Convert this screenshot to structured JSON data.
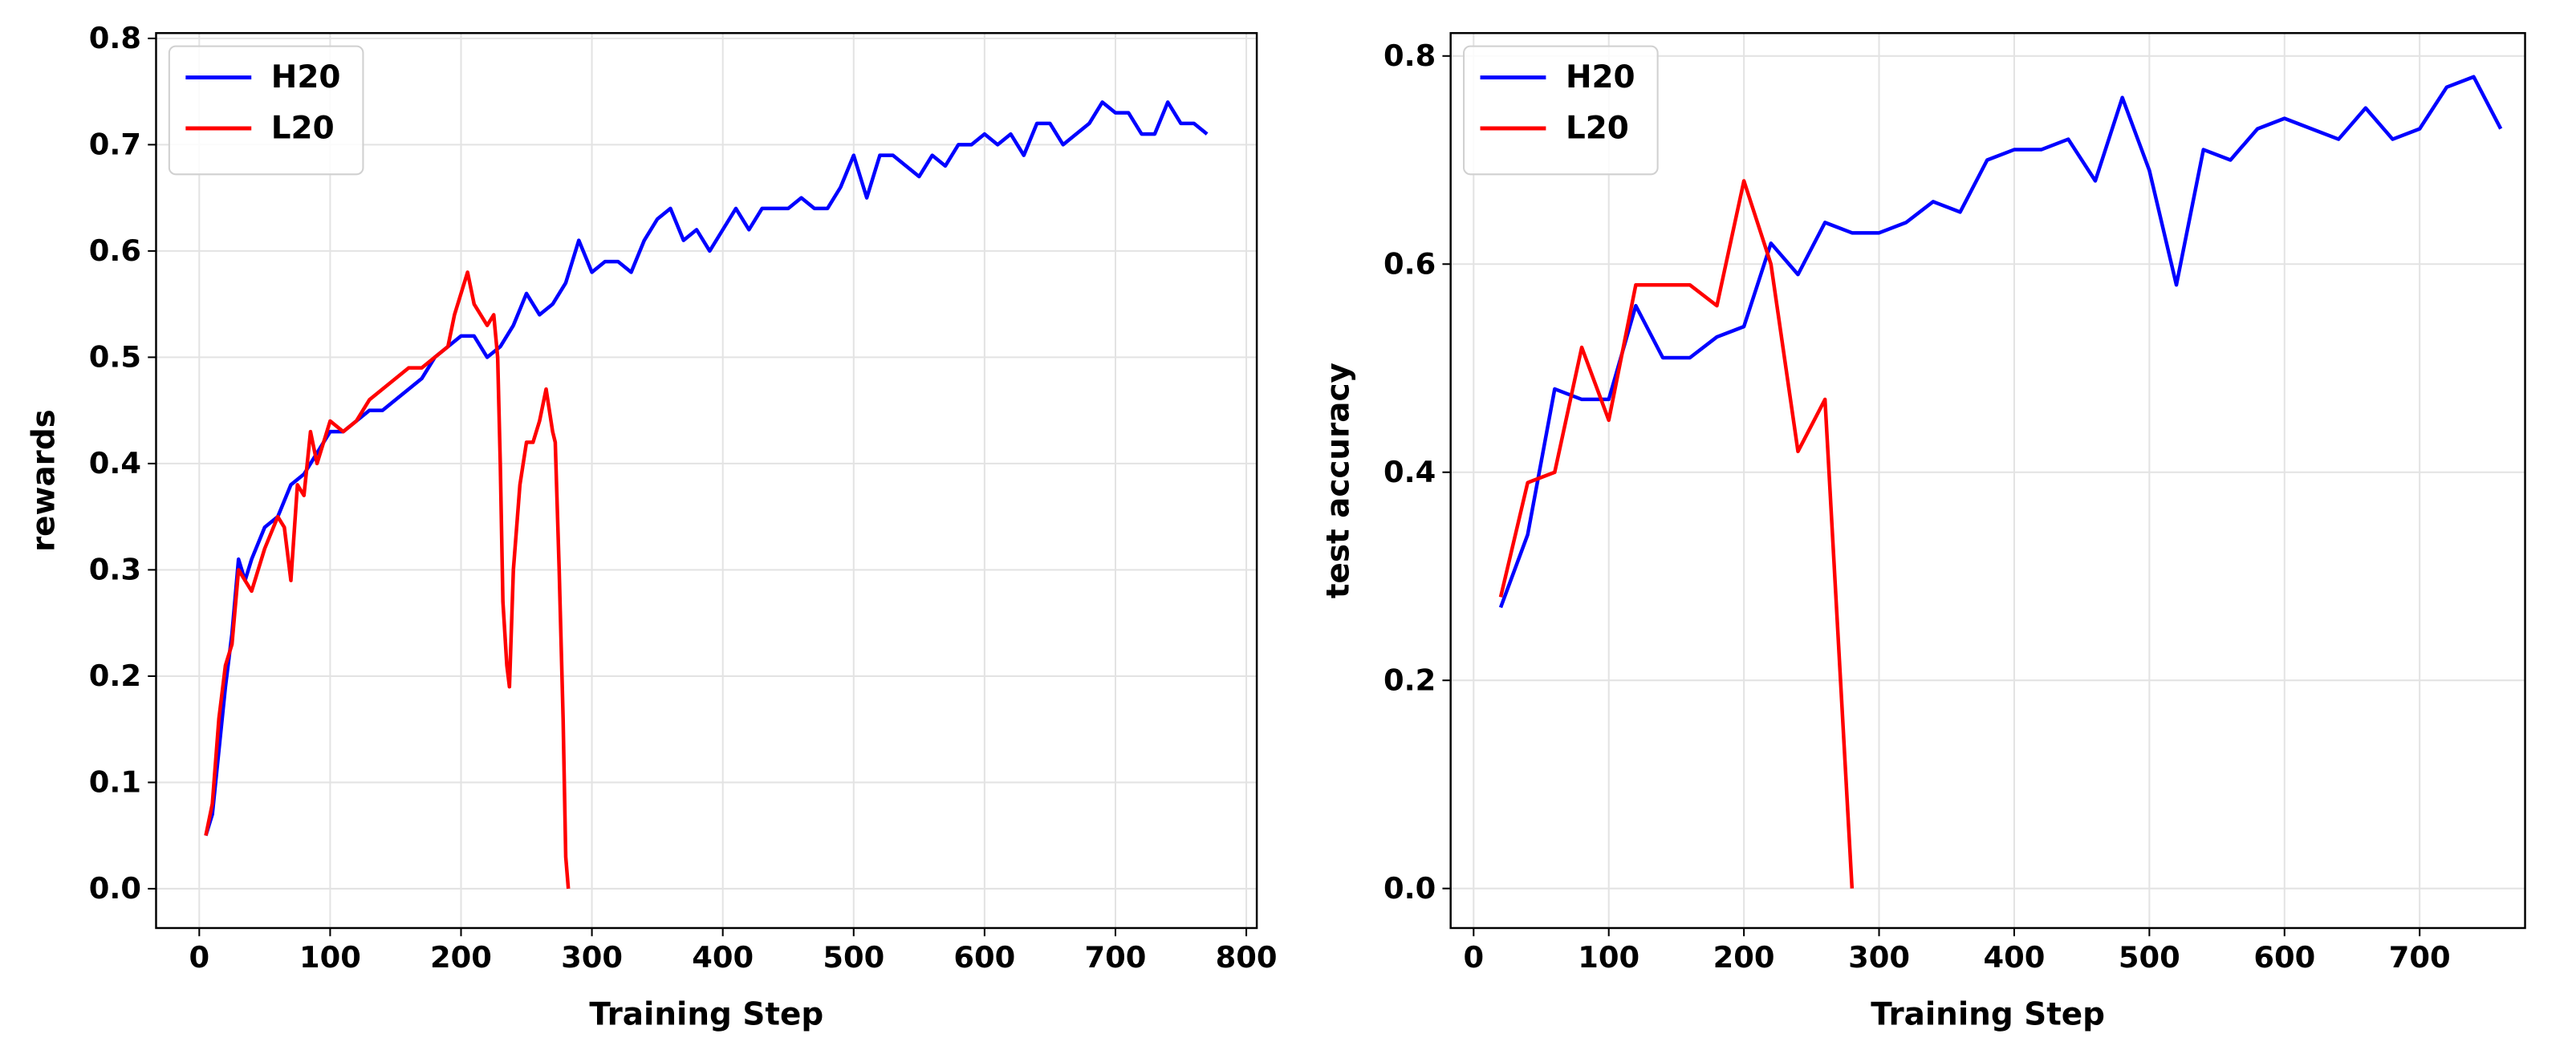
{
  "chart_data": [
    {
      "type": "line",
      "xlabel": "Training Step",
      "ylabel": "rewards",
      "grid": true,
      "legend": "upper left",
      "xlim": [
        -33,
        808
      ],
      "ylim": [
        -0.037,
        0.805
      ],
      "xticks": [
        0,
        100,
        200,
        300,
        400,
        500,
        600,
        700,
        800
      ],
      "yticks": [
        {
          "value": 0,
          "label": "0.0"
        },
        0.1,
        0.2,
        0.3,
        0.4,
        0.5,
        0.6,
        0.7,
        0.8
      ],
      "series": [
        {
          "name": "H20",
          "color": "#0000ff",
          "x": [
            5,
            10,
            15,
            20,
            25,
            30,
            35,
            40,
            50,
            60,
            70,
            80,
            90,
            100,
            110,
            120,
            130,
            140,
            150,
            160,
            170,
            180,
            190,
            200,
            210,
            220,
            230,
            240,
            250,
            260,
            270,
            280,
            290,
            300,
            310,
            320,
            330,
            340,
            350,
            360,
            370,
            380,
            390,
            400,
            410,
            420,
            430,
            440,
            450,
            460,
            470,
            480,
            490,
            500,
            510,
            520,
            530,
            540,
            550,
            560,
            570,
            580,
            590,
            600,
            610,
            620,
            630,
            640,
            650,
            660,
            670,
            680,
            690,
            700,
            710,
            720,
            730,
            740,
            750,
            760,
            770
          ],
          "values": [
            0.05,
            0.07,
            0.13,
            0.19,
            0.24,
            0.31,
            0.29,
            0.31,
            0.34,
            0.35,
            0.38,
            0.39,
            0.41,
            0.43,
            0.43,
            0.44,
            0.45,
            0.45,
            0.46,
            0.47,
            0.48,
            0.5,
            0.51,
            0.52,
            0.52,
            0.5,
            0.51,
            0.53,
            0.56,
            0.54,
            0.55,
            0.57,
            0.61,
            0.58,
            0.59,
            0.59,
            0.58,
            0.61,
            0.63,
            0.64,
            0.61,
            0.62,
            0.6,
            0.62,
            0.64,
            0.62,
            0.64,
            0.64,
            0.64,
            0.65,
            0.64,
            0.64,
            0.66,
            0.69,
            0.65,
            0.69,
            0.69,
            0.68,
            0.67,
            0.69,
            0.68,
            0.7,
            0.7,
            0.71,
            0.7,
            0.71,
            0.69,
            0.72,
            0.72,
            0.7,
            0.71,
            0.72,
            0.74,
            0.73,
            0.73,
            0.71,
            0.71,
            0.74,
            0.72,
            0.72,
            0.71
          ]
        },
        {
          "name": "L20",
          "color": "#ff0000",
          "x": [
            5,
            10,
            15,
            20,
            25,
            30,
            40,
            50,
            60,
            65,
            70,
            75,
            80,
            85,
            90,
            100,
            110,
            120,
            130,
            140,
            150,
            160,
            170,
            180,
            190,
            195,
            200,
            205,
            210,
            220,
            225,
            228,
            230,
            232,
            235,
            237,
            240,
            245,
            250,
            255,
            260,
            265,
            270,
            272,
            275,
            278,
            280,
            282
          ],
          "values": [
            0.05,
            0.08,
            0.16,
            0.21,
            0.23,
            0.3,
            0.28,
            0.32,
            0.35,
            0.34,
            0.29,
            0.38,
            0.37,
            0.43,
            0.4,
            0.44,
            0.43,
            0.44,
            0.46,
            0.47,
            0.48,
            0.49,
            0.49,
            0.5,
            0.51,
            0.54,
            0.56,
            0.58,
            0.55,
            0.53,
            0.54,
            0.5,
            0.4,
            0.27,
            0.21,
            0.19,
            0.3,
            0.38,
            0.42,
            0.42,
            0.44,
            0.47,
            0.43,
            0.42,
            0.3,
            0.16,
            0.03,
            0
          ]
        }
      ]
    },
    {
      "type": "line",
      "xlabel": "Training Step",
      "ylabel": "test accuracy",
      "grid": true,
      "legend": "upper left",
      "xlim": [
        -17,
        778
      ],
      "ylim": [
        -0.038,
        0.822
      ],
      "xticks": [
        0,
        100,
        200,
        300,
        400,
        500,
        600,
        700
      ],
      "yticks": [
        {
          "value": 0,
          "label": "0.0"
        },
        0.2,
        0.4,
        0.6,
        0.8
      ],
      "series": [
        {
          "name": "H20",
          "color": "#0000ff",
          "x": [
            20,
            40,
            60,
            80,
            100,
            120,
            140,
            160,
            180,
            200,
            220,
            240,
            260,
            280,
            300,
            320,
            340,
            360,
            380,
            400,
            420,
            440,
            460,
            480,
            500,
            520,
            540,
            560,
            580,
            600,
            620,
            640,
            660,
            680,
            700,
            720,
            740,
            760
          ],
          "values": [
            0.27,
            0.34,
            0.48,
            0.47,
            0.47,
            0.56,
            0.51,
            0.51,
            0.53,
            0.54,
            0.62,
            0.59,
            0.64,
            0.63,
            0.63,
            0.64,
            0.66,
            0.65,
            0.7,
            0.71,
            0.71,
            0.72,
            0.68,
            0.76,
            0.69,
            0.58,
            0.71,
            0.7,
            0.73,
            0.74,
            0.73,
            0.72,
            0.75,
            0.72,
            0.73,
            0.77,
            0.78,
            0.73
          ]
        },
        {
          "name": "L20",
          "color": "#ff0000",
          "x": [
            20,
            40,
            60,
            80,
            100,
            120,
            140,
            160,
            180,
            200,
            220,
            240,
            260,
            280
          ],
          "values": [
            0.28,
            0.39,
            0.4,
            0.52,
            0.45,
            0.58,
            0.58,
            0.58,
            0.56,
            0.68,
            0.6,
            0.42,
            0.47,
            0
          ]
        }
      ]
    }
  ]
}
